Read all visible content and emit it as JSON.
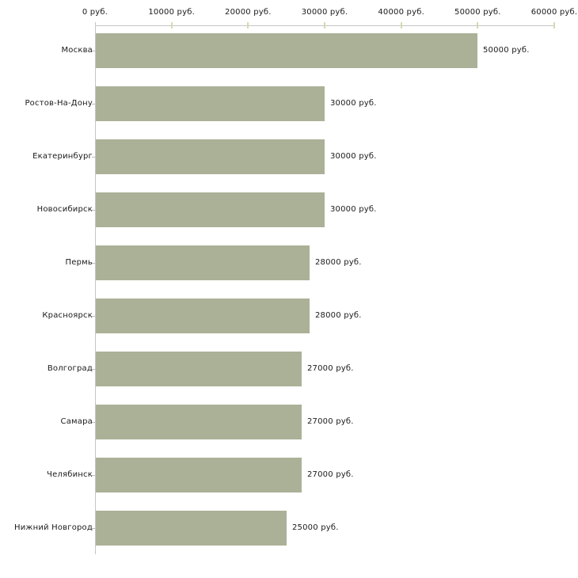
{
  "chart_data": {
    "type": "bar",
    "orientation": "horizontal",
    "title": "",
    "categories": [
      "Москва",
      "Ростов-На-Дону",
      "Екатеринбург",
      "Новосибирск",
      "Пермь",
      "Красноярск",
      "Волгоград",
      "Самара",
      "Челябинск",
      "Нижний Новгород"
    ],
    "values": [
      50000,
      30000,
      30000,
      30000,
      28000,
      28000,
      27000,
      27000,
      27000,
      25000
    ],
    "bar_labels": [
      "50000 руб.",
      "30000 руб.",
      "30000 руб.",
      "30000 руб.",
      "28000 руб.",
      "28000 руб.",
      "27000 руб.",
      "27000 руб.",
      "27000 руб.",
      "25000 руб."
    ],
    "x_ticks": [
      0,
      10000,
      20000,
      30000,
      40000,
      50000,
      60000
    ],
    "x_tick_labels": [
      "0 руб.",
      "10000 руб.",
      "20000 руб.",
      "30000 руб.",
      "40000 руб.",
      "50000 руб.",
      "60000 руб."
    ],
    "xlim": [
      0,
      60000
    ],
    "unit": "руб.",
    "grid": "off",
    "legend": "none",
    "colors": {
      "bar": "#abb197",
      "axis_line": "#c6c6c6",
      "x_tick_mark": "#d8d8b2",
      "category_tick_mark": "#bbbbbb",
      "text": "#1a1a1a",
      "background": "#ffffff"
    }
  }
}
